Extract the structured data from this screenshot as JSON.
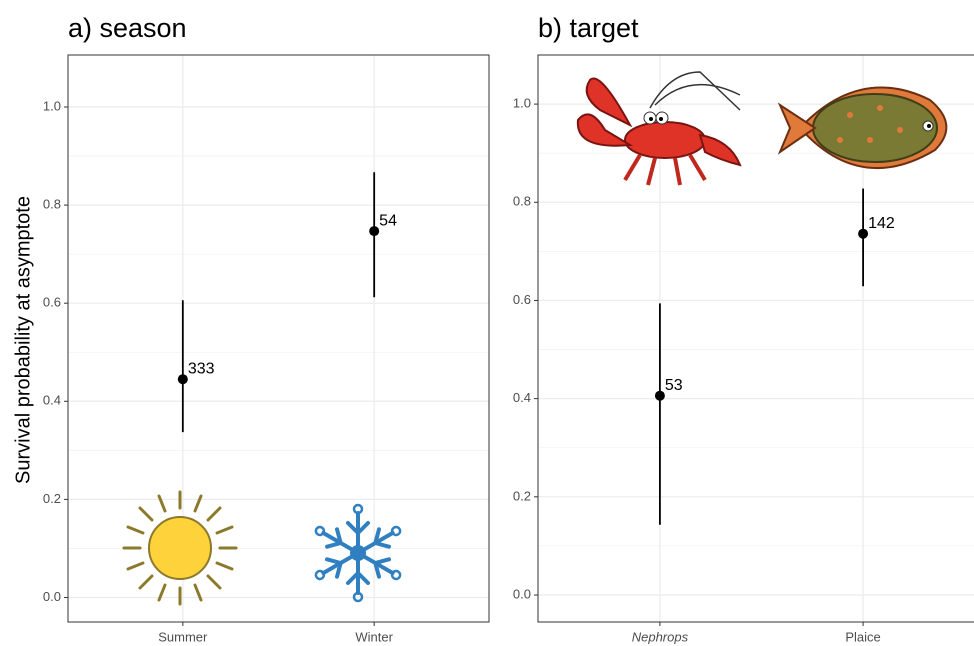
{
  "chart_data": [
    {
      "type": "pointrange",
      "title": "a) season",
      "ylabel": "Survival probability at asymptote",
      "categories": [
        "Summer",
        "Winter"
      ],
      "category_font_style": [
        "normal",
        "normal"
      ],
      "values": [
        0.445,
        0.747
      ],
      "lower": [
        0.337,
        0.612
      ],
      "upper": [
        0.606,
        0.867
      ],
      "n": [
        333,
        54
      ],
      "color": "#000000",
      "ylim": [
        -0.05,
        1.106
      ],
      "yticks": [
        {
          "value": 0,
          "label": "0.0"
        },
        0.2,
        0.4,
        0.6,
        0.8,
        {
          "value": 1,
          "label": "1.0"
        }
      ],
      "grid": true
    },
    {
      "type": "pointrange",
      "title": "b) target",
      "categories": [
        "Nephrops",
        "Plaice"
      ],
      "category_font_style": [
        "italic",
        "normal"
      ],
      "values": [
        0.406,
        0.736
      ],
      "lower": [
        0.143,
        0.629
      ],
      "upper": [
        0.594,
        0.828
      ],
      "n": [
        53,
        142
      ],
      "color": "#000000",
      "ylim": [
        -0.055,
        1.1
      ],
      "yticks": [
        {
          "value": 0,
          "label": "0.0"
        },
        0.2,
        0.4,
        0.6,
        0.8,
        {
          "value": 1,
          "label": "1.0"
        }
      ],
      "grid": true
    }
  ]
}
